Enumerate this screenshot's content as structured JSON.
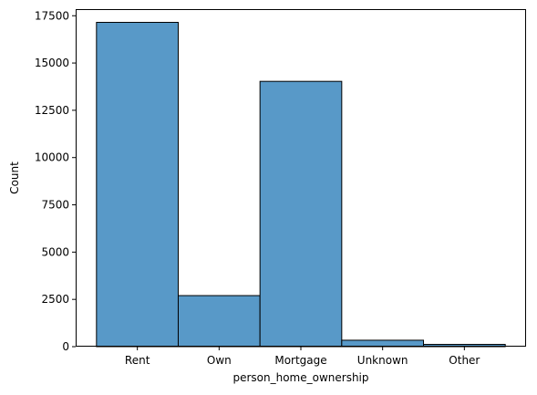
{
  "chart_data": {
    "type": "bar",
    "categories": [
      "Rent",
      "Own",
      "Mortgage",
      "Unknown",
      "Other"
    ],
    "values": [
      17150,
      2700,
      14030,
      340,
      120
    ],
    "title": "",
    "xlabel": "person_home_ownership",
    "ylabel": "Count",
    "ylim": [
      0,
      17850
    ],
    "yticks": [
      0,
      2500,
      5000,
      7500,
      10000,
      12500,
      15000,
      17500
    ],
    "grid": false,
    "bar_color": "#5899c8",
    "edge_color": "#000000"
  }
}
